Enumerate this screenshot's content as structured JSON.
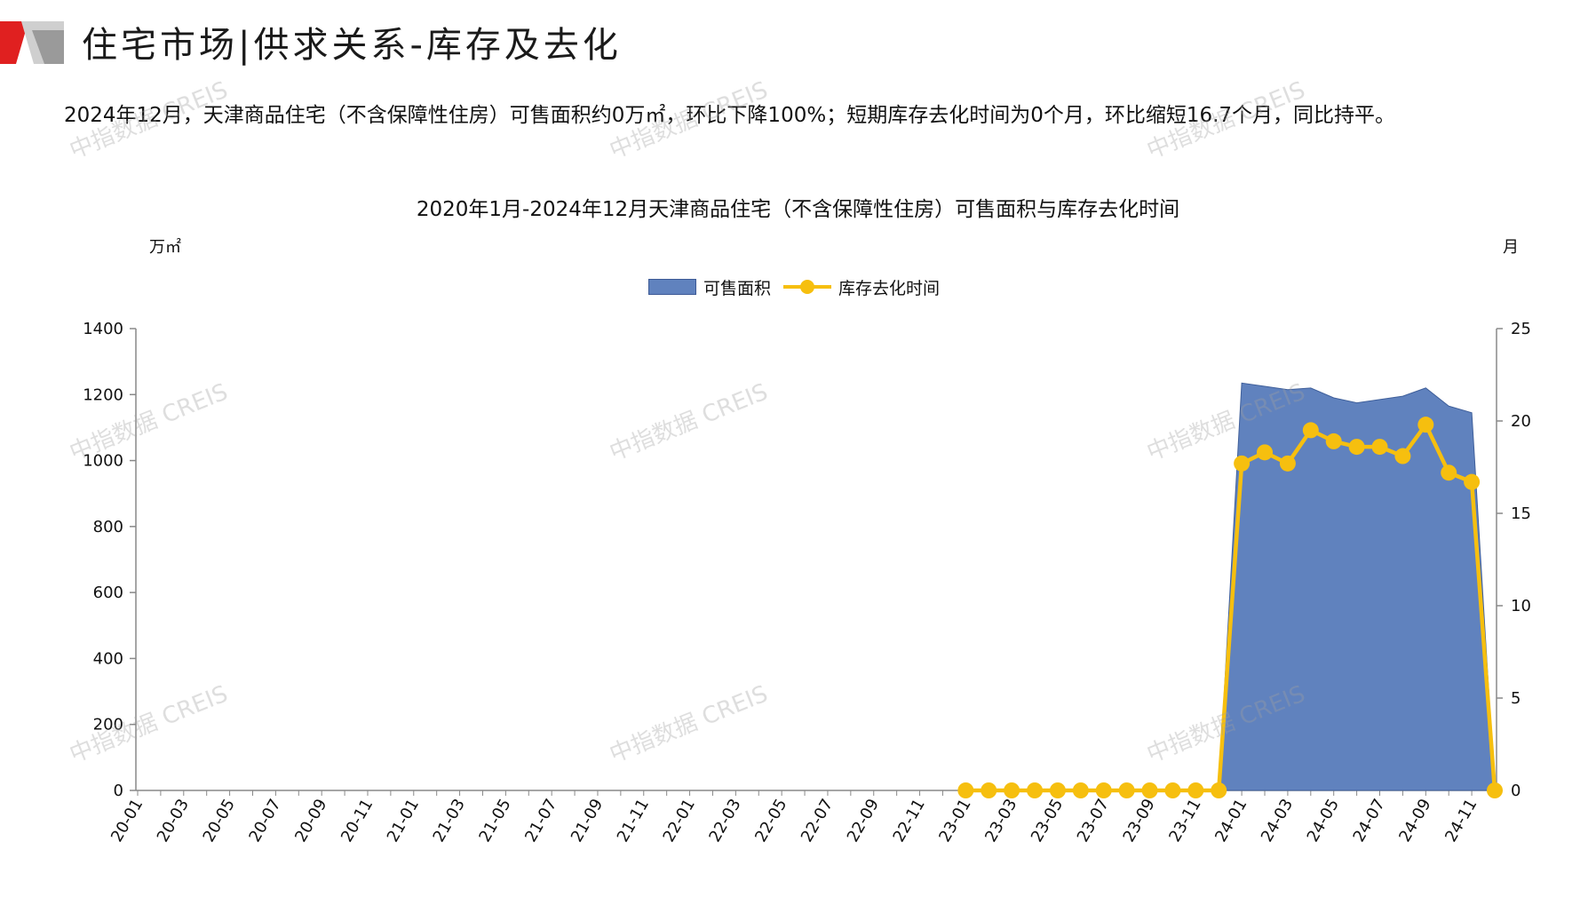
{
  "header": {
    "title": "住宅市场|供求关系-库存及去化"
  },
  "summary": "2024年12月，天津商品住宅（不含保障性住房）可售面积约0万㎡，环比下降100%；短期库存去化时间为0个月，环比缩短16.7个月，同比持平。",
  "watermark": "中指数据 CREIS",
  "colors": {
    "area": "#6082BE",
    "line": "#F6BF0F",
    "logo_red": "#E02020",
    "logo_gray": "#9a9a9a"
  },
  "chart_data": {
    "type": "area+line",
    "title": "2020年1月-2024年12月天津商品住宅（不含保障性住房）可售面积与库存去化时间",
    "y_left_unit": "万㎡",
    "y_right_unit": "月",
    "ylim_left": [
      0,
      1400
    ],
    "ylim_right": [
      0,
      25
    ],
    "y_left_ticks": [
      "0",
      "200",
      "400",
      "600",
      "800",
      "1000",
      "1200",
      "1400"
    ],
    "y_right_ticks": [
      "0",
      "5",
      "10",
      "15",
      "20",
      "25"
    ],
    "x_tick_labels": [
      "20-01",
      "20-03",
      "20-05",
      "20-07",
      "20-09",
      "20-11",
      "21-01",
      "21-03",
      "21-05",
      "21-07",
      "21-09",
      "21-11",
      "22-01",
      "22-03",
      "22-05",
      "22-07",
      "22-09",
      "22-11",
      "23-01",
      "23-03",
      "23-05",
      "23-07",
      "23-09",
      "23-11",
      "24-01",
      "24-03",
      "24-05",
      "24-07",
      "24-09",
      "24-11"
    ],
    "months": [
      "2020-01",
      "2020-02",
      "2020-03",
      "2020-04",
      "2020-05",
      "2020-06",
      "2020-07",
      "2020-08",
      "2020-09",
      "2020-10",
      "2020-11",
      "2020-12",
      "2021-01",
      "2021-02",
      "2021-03",
      "2021-04",
      "2021-05",
      "2021-06",
      "2021-07",
      "2021-08",
      "2021-09",
      "2021-10",
      "2021-11",
      "2021-12",
      "2022-01",
      "2022-02",
      "2022-03",
      "2022-04",
      "2022-05",
      "2022-06",
      "2022-07",
      "2022-08",
      "2022-09",
      "2022-10",
      "2022-11",
      "2022-12",
      "2023-01",
      "2023-02",
      "2023-03",
      "2023-04",
      "2023-05",
      "2023-06",
      "2023-07",
      "2023-08",
      "2023-09",
      "2023-10",
      "2023-11",
      "2023-12",
      "2024-01",
      "2024-02",
      "2024-03",
      "2024-04",
      "2024-05",
      "2024-06",
      "2024-07",
      "2024-08",
      "2024-09",
      "2024-10",
      "2024-11",
      "2024-12"
    ],
    "series": [
      {
        "name": "可售面积",
        "kind": "area",
        "axis": "left",
        "values": [
          null,
          null,
          null,
          null,
          null,
          null,
          null,
          null,
          null,
          null,
          null,
          null,
          null,
          null,
          null,
          null,
          null,
          null,
          null,
          null,
          null,
          null,
          null,
          null,
          null,
          null,
          null,
          null,
          null,
          null,
          null,
          null,
          null,
          null,
          null,
          null,
          null,
          null,
          null,
          null,
          null,
          null,
          null,
          null,
          null,
          null,
          null,
          0,
          1235,
          1225,
          1215,
          1220,
          1190,
          1175,
          1185,
          1195,
          1220,
          1165,
          1145,
          0
        ]
      },
      {
        "name": "库存去化时间",
        "kind": "line",
        "axis": "right",
        "values": [
          null,
          null,
          null,
          null,
          null,
          null,
          null,
          null,
          null,
          null,
          null,
          null,
          null,
          null,
          null,
          null,
          null,
          null,
          null,
          null,
          null,
          null,
          null,
          null,
          null,
          null,
          null,
          null,
          null,
          null,
          null,
          null,
          null,
          null,
          null,
          null,
          0,
          0,
          0,
          0,
          0,
          0,
          0,
          0,
          0,
          0,
          0,
          0,
          17.7,
          18.3,
          17.7,
          19.5,
          18.9,
          18.6,
          18.6,
          18.1,
          19.8,
          17.2,
          16.7,
          0
        ]
      }
    ],
    "legend": [
      "可售面积",
      "库存去化时间"
    ],
    "legend_position": "top-center",
    "grid": false
  }
}
